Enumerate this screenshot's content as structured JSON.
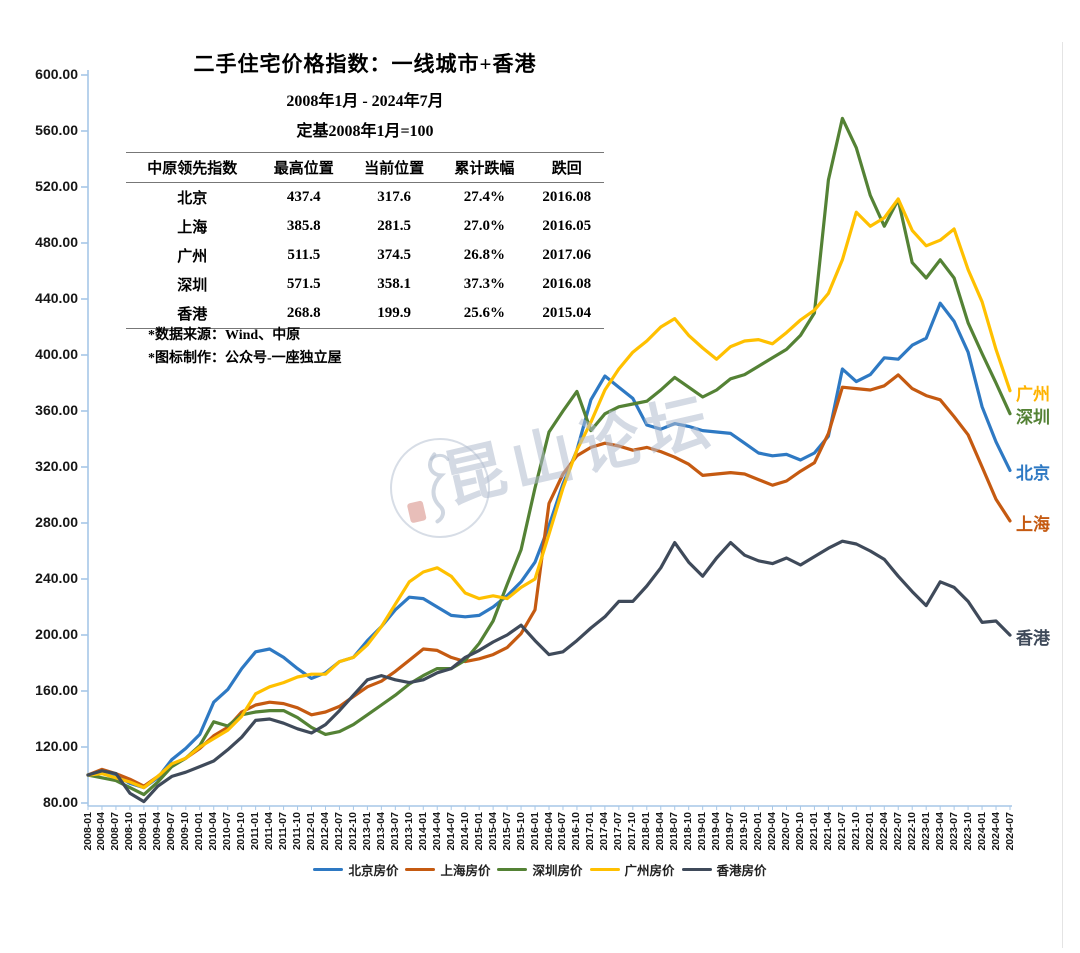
{
  "header": {
    "title": "二手住宅价格指数：一线城市+香港",
    "date_range": "2008年1月 - 2024年7月",
    "base_note": "定基2008年1月=100"
  },
  "table": {
    "headers": [
      "中原领先指数",
      "最高位置",
      "当前位置",
      "累计跌幅",
      "跌回"
    ],
    "rows": [
      [
        "北京",
        "437.4",
        "317.6",
        "27.4%",
        "2016.08"
      ],
      [
        "上海",
        "385.8",
        "281.5",
        "27.0%",
        "2016.05"
      ],
      [
        "广州",
        "511.5",
        "374.5",
        "26.8%",
        "2017.06"
      ],
      [
        "深圳",
        "571.5",
        "358.1",
        "37.3%",
        "2016.08"
      ],
      [
        "香港",
        "268.8",
        "199.9",
        "25.6%",
        "2015.04"
      ]
    ]
  },
  "footnotes": [
    "*数据来源：Wind、中原",
    "*图标制作：公众号-一座独立屋"
  ],
  "watermark": {
    "text": "昆山论坛"
  },
  "legend": {
    "items": [
      {
        "label": "北京房价",
        "color": "#2E79C3"
      },
      {
        "label": "上海房价",
        "color": "#C55A11"
      },
      {
        "label": "深圳房价",
        "color": "#548235"
      },
      {
        "label": "广州房价",
        "color": "#FFC000"
      },
      {
        "label": "香港房价",
        "color": "#3F4A5A"
      }
    ]
  },
  "right_labels": [
    {
      "text": "广州",
      "color": "#FFB300",
      "value": 374.5
    },
    {
      "text": "深圳",
      "color": "#548235",
      "value": 358.1
    },
    {
      "text": "北京",
      "color": "#2E79C3",
      "value": 317.6
    },
    {
      "text": "上海",
      "color": "#C55A11",
      "value": 281.5
    },
    {
      "text": "香港",
      "color": "#3F4A5A",
      "value": 199.9
    }
  ],
  "chart_data": {
    "type": "line",
    "title": "二手住宅价格指数：一线城市+香港",
    "xlabel": "",
    "ylabel": "",
    "ylim": [
      80,
      600
    ],
    "y_ticks": [
      80,
      120,
      160,
      200,
      240,
      280,
      320,
      360,
      400,
      440,
      480,
      520,
      560,
      600
    ],
    "grid": false,
    "legend_position": "bottom",
    "axis_color": "#A7C7E7",
    "x": [
      "2008-01",
      "2008-04",
      "2008-07",
      "2008-10",
      "2009-01",
      "2009-04",
      "2009-07",
      "2009-10",
      "2010-01",
      "2010-04",
      "2010-07",
      "2010-10",
      "2011-01",
      "2011-04",
      "2011-07",
      "2011-10",
      "2012-01",
      "2012-04",
      "2012-07",
      "2012-10",
      "2013-01",
      "2013-04",
      "2013-07",
      "2013-10",
      "2014-01",
      "2014-04",
      "2014-07",
      "2014-10",
      "2015-01",
      "2015-04",
      "2015-07",
      "2015-10",
      "2016-01",
      "2016-04",
      "2016-07",
      "2016-10",
      "2017-01",
      "2017-04",
      "2017-07",
      "2017-10",
      "2018-01",
      "2018-04",
      "2018-07",
      "2018-10",
      "2019-01",
      "2019-04",
      "2019-07",
      "2019-10",
      "2020-01",
      "2020-04",
      "2020-07",
      "2020-10",
      "2021-01",
      "2021-04",
      "2021-07",
      "2021-10",
      "2022-01",
      "2022-04",
      "2022-07",
      "2022-10",
      "2023-01",
      "2023-04",
      "2023-07",
      "2023-10",
      "2024-01",
      "2024-04",
      "2024-07"
    ],
    "series": [
      {
        "name": "北京房价",
        "color": "#2E79C3",
        "values": [
          100,
          102,
          100,
          94,
          91,
          98,
          111,
          119,
          129,
          152,
          161,
          176,
          188,
          190,
          184,
          176,
          169,
          173,
          181,
          184,
          196,
          206,
          218,
          227,
          226,
          220,
          214,
          213,
          214,
          220,
          228,
          238,
          252,
          278,
          308,
          332,
          368,
          385,
          377,
          369,
          350,
          347,
          351,
          349,
          346,
          345,
          344,
          337,
          330,
          328,
          329,
          325,
          330,
          342,
          390,
          381,
          386,
          398,
          397,
          407,
          412,
          437,
          424,
          402,
          363,
          338,
          317.6
        ]
      },
      {
        "name": "上海房价",
        "color": "#C55A11",
        "values": [
          100,
          104,
          101,
          97,
          92,
          99,
          107,
          112,
          119,
          128,
          134,
          145,
          150,
          152,
          151,
          148,
          143,
          145,
          149,
          156,
          163,
          167,
          174,
          182,
          190,
          189,
          184,
          181,
          183,
          186,
          191,
          201,
          218,
          294,
          315,
          328,
          334,
          337,
          335,
          332,
          334,
          331,
          327,
          322,
          314,
          315,
          316,
          315,
          311,
          307,
          310,
          317,
          323,
          344,
          377,
          376,
          375,
          378,
          385.8,
          376,
          371,
          368,
          356,
          343,
          320,
          297,
          281.5
        ]
      },
      {
        "name": "深圳房价",
        "color": "#548235",
        "values": [
          100,
          98,
          96,
          91,
          86,
          95,
          106,
          112,
          121,
          138,
          135,
          143,
          145,
          146,
          146,
          141,
          134,
          129,
          131,
          136,
          143,
          150,
          157,
          165,
          171,
          176,
          176,
          182,
          194,
          210,
          236,
          261,
          305,
          345,
          360,
          374,
          346,
          358,
          363,
          365,
          367,
          375,
          384,
          377,
          370,
          375,
          383,
          386,
          392,
          398,
          404,
          414,
          430,
          525,
          569,
          548,
          514,
          492,
          511,
          466,
          455,
          468,
          455,
          423,
          401,
          380,
          358.1
        ]
      },
      {
        "name": "广州房价",
        "color": "#FFC000",
        "values": [
          100,
          101,
          98,
          95,
          91,
          99,
          108,
          112,
          120,
          126,
          132,
          142,
          158,
          163,
          166,
          170,
          172,
          172,
          181,
          184,
          193,
          206,
          222,
          238,
          245,
          248,
          242,
          230,
          226,
          228,
          226,
          234,
          240,
          272,
          305,
          332,
          352,
          375,
          390,
          402,
          410,
          420,
          426,
          414,
          405,
          397,
          406,
          410,
          411,
          408,
          416,
          425,
          432,
          444,
          468,
          502,
          492,
          498,
          511.5,
          489,
          478,
          482,
          490,
          461,
          438,
          404,
          374.5
        ]
      },
      {
        "name": "香港房价",
        "color": "#3F4A5A",
        "values": [
          100,
          103,
          101,
          87,
          81,
          92,
          99,
          102,
          106,
          110,
          118,
          127,
          139,
          140,
          137,
          133,
          130,
          136,
          146,
          157,
          168,
          171,
          168,
          166,
          168,
          173,
          176,
          184,
          189,
          195,
          200,
          207,
          196,
          186,
          188,
          196,
          205,
          213,
          224,
          224,
          235,
          248,
          266,
          252,
          242,
          255,
          266,
          257,
          253,
          251,
          255,
          250,
          256,
          262,
          267,
          265,
          260,
          254,
          242,
          231,
          221,
          238,
          234,
          224,
          209,
          210,
          199.9
        ]
      }
    ]
  }
}
